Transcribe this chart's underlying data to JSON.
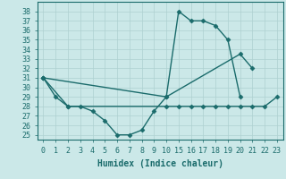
{
  "background_color": "#cbe8e8",
  "grid_color": "#aed0d0",
  "line_color": "#1a6b6b",
  "line_width": 1.0,
  "marker": "D",
  "marker_size": 2.5,
  "xlabel": "Humidex (Indice chaleur)",
  "xlabel_fontsize": 7,
  "tick_fontsize": 6,
  "ylim": [
    24.5,
    39.0
  ],
  "xlim": [
    -0.5,
    19.5
  ],
  "x_ticks_labels": [
    "0",
    "1",
    "2",
    "3",
    "4",
    "5",
    "6",
    "7",
    "8",
    "9",
    "10",
    "15",
    "16",
    "17",
    "18",
    "19",
    "20",
    "21",
    "22",
    "23"
  ],
  "y_ticks": [
    25,
    26,
    27,
    28,
    29,
    30,
    31,
    32,
    33,
    34,
    35,
    36,
    37,
    38
  ],
  "series": [
    {
      "xi": [
        0,
        1,
        2,
        3,
        4,
        5,
        6,
        7,
        8,
        9,
        10,
        11,
        12,
        13,
        14,
        15,
        16
      ],
      "y": [
        31,
        29,
        28,
        28,
        27.5,
        26.5,
        25,
        25,
        25.5,
        27.5,
        29,
        38,
        37,
        37,
        36.5,
        35,
        29
      ]
    },
    {
      "xi": [
        0,
        10,
        16,
        17
      ],
      "y": [
        31,
        29,
        33.5,
        32
      ]
    },
    {
      "xi": [
        0,
        2,
        10,
        11,
        12,
        13,
        14,
        15,
        16,
        17,
        18,
        19
      ],
      "y": [
        31,
        28,
        28,
        28,
        28,
        28,
        28,
        28,
        28,
        28,
        28,
        29
      ]
    }
  ]
}
